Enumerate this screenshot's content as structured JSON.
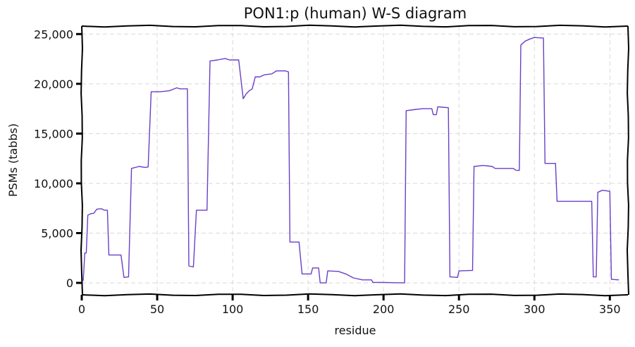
{
  "chart_data": {
    "type": "line",
    "title": "PON1:p (human) W-S diagram",
    "xlabel": "residue",
    "ylabel": "PSMs (tabbs)",
    "xlim": [
      0,
      362
    ],
    "ylim": [
      -1200,
      25800
    ],
    "xticks": [
      0,
      50,
      100,
      150,
      200,
      250,
      300,
      350
    ],
    "xtick_labels": [
      "0",
      "50",
      "100",
      "150",
      "200",
      "250",
      "300",
      "350"
    ],
    "yticks": [
      0,
      5000,
      10000,
      15000,
      20000,
      25000
    ],
    "ytick_labels": [
      "0",
      "5,000",
      "10,000",
      "15,000",
      "20,000",
      "25,000"
    ],
    "grid": true,
    "series": [
      {
        "color": "#6a3fc8",
        "points": [
          [
            1,
            200
          ],
          [
            2,
            3000
          ],
          [
            3,
            3000
          ],
          [
            4,
            6800
          ],
          [
            6,
            6950
          ],
          [
            8,
            7000
          ],
          [
            10,
            7400
          ],
          [
            13,
            7450
          ],
          [
            15,
            7300
          ],
          [
            17,
            7300
          ],
          [
            18,
            2800
          ],
          [
            21,
            2800
          ],
          [
            26,
            2800
          ],
          [
            28,
            550
          ],
          [
            31,
            600
          ],
          [
            33,
            11500
          ],
          [
            38,
            11700
          ],
          [
            42,
            11600
          ],
          [
            44,
            11650
          ],
          [
            46,
            19200
          ],
          [
            52,
            19200
          ],
          [
            58,
            19300
          ],
          [
            63,
            19600
          ],
          [
            65,
            19500
          ],
          [
            70,
            19500
          ],
          [
            71,
            1700
          ],
          [
            74,
            1600
          ],
          [
            76,
            7300
          ],
          [
            83,
            7300
          ],
          [
            85,
            22300
          ],
          [
            90,
            22400
          ],
          [
            95,
            22550
          ],
          [
            98,
            22400
          ],
          [
            104,
            22400
          ],
          [
            107,
            18500
          ],
          [
            109,
            19000
          ],
          [
            111,
            19300
          ],
          [
            113,
            19500
          ],
          [
            115,
            20700
          ],
          [
            118,
            20700
          ],
          [
            121,
            20900
          ],
          [
            126,
            21000
          ],
          [
            129,
            21300
          ],
          [
            135,
            21300
          ],
          [
            137,
            21200
          ],
          [
            138,
            4100
          ],
          [
            144,
            4100
          ],
          [
            146,
            900
          ],
          [
            152,
            900
          ],
          [
            153,
            1500
          ],
          [
            157,
            1500
          ],
          [
            158,
            0
          ],
          [
            162,
            0
          ],
          [
            163,
            1200
          ],
          [
            170,
            1150
          ],
          [
            175,
            900
          ],
          [
            180,
            500
          ],
          [
            186,
            300
          ],
          [
            192,
            300
          ],
          [
            193,
            50
          ],
          [
            200,
            50
          ],
          [
            207,
            20
          ],
          [
            214,
            0
          ],
          [
            215,
            17300
          ],
          [
            220,
            17400
          ],
          [
            226,
            17500
          ],
          [
            232,
            17500
          ],
          [
            233,
            16900
          ],
          [
            235,
            16900
          ],
          [
            236,
            17700
          ],
          [
            239,
            17650
          ],
          [
            243,
            17600
          ],
          [
            244,
            600
          ],
          [
            249,
            550
          ],
          [
            250,
            1200
          ],
          [
            259,
            1250
          ],
          [
            260,
            11700
          ],
          [
            266,
            11800
          ],
          [
            272,
            11700
          ],
          [
            274,
            11500
          ],
          [
            282,
            11500
          ],
          [
            286,
            11500
          ],
          [
            288,
            11300
          ],
          [
            290,
            11300
          ],
          [
            291,
            23900
          ],
          [
            294,
            24300
          ],
          [
            297,
            24500
          ],
          [
            300,
            24650
          ],
          [
            306,
            24600
          ],
          [
            307,
            12000
          ],
          [
            314,
            12000
          ],
          [
            315,
            8200
          ],
          [
            320,
            8200
          ],
          [
            325,
            8200
          ],
          [
            330,
            8200
          ],
          [
            338,
            8200
          ],
          [
            339,
            600
          ],
          [
            341,
            600
          ],
          [
            342,
            9100
          ],
          [
            345,
            9300
          ],
          [
            350,
            9200
          ],
          [
            351,
            350
          ],
          [
            356,
            300
          ]
        ]
      }
    ]
  }
}
